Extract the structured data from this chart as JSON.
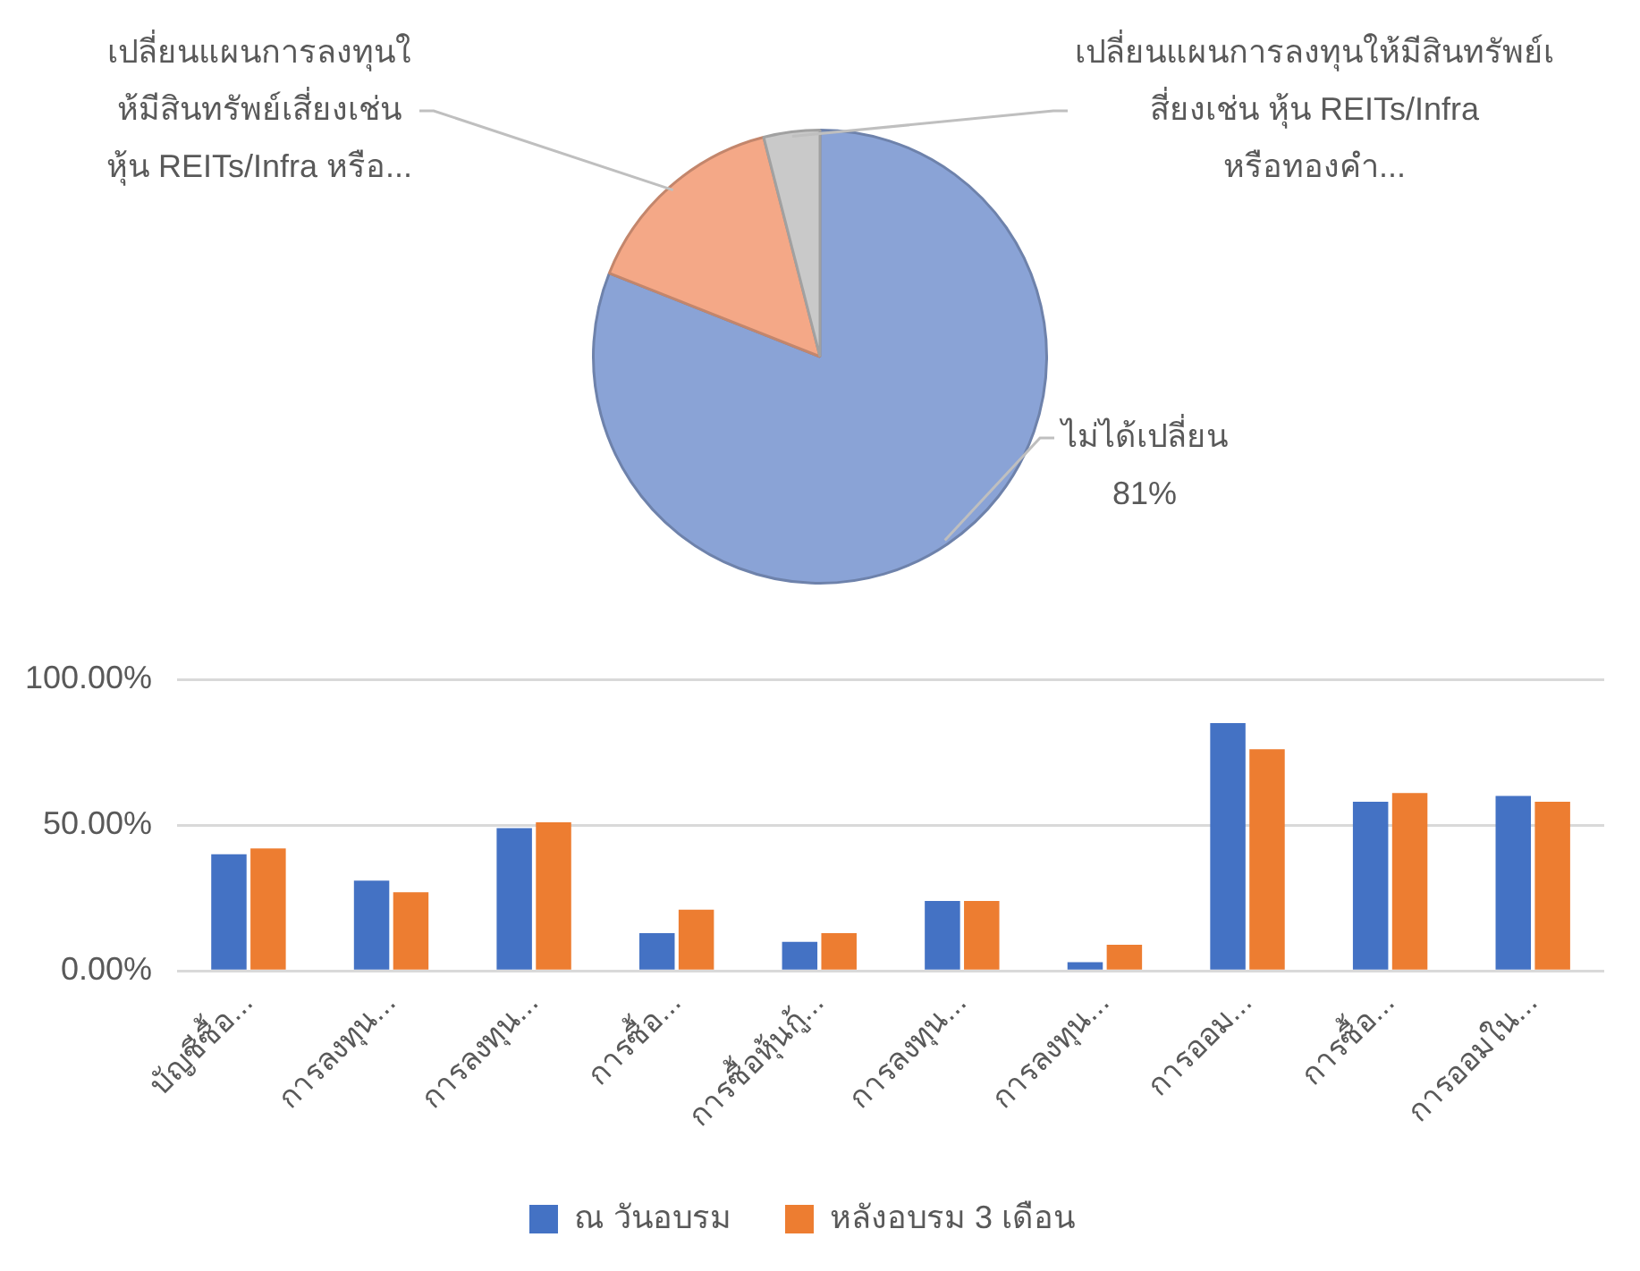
{
  "chart_data": [
    {
      "type": "pie",
      "categories": [
        "ไม่ได้เปลี่ยน",
        "เปลี่ยนแผนการลงทุนให้มีสินทรัพย์เสี่ยงเช่น หุ้น REITs/Infra หรือ...",
        "เปลี่ยนแผนการลงทุนให้มีสินทรัพย์เสี่ยงเช่น หุ้น REITs/Infra หรือทองคำ..."
      ],
      "values": [
        81,
        15,
        4
      ],
      "colors": [
        "#8aa3d6",
        "#f4a887",
        "#c9c9c9"
      ],
      "value_labels": [
        "81%",
        null,
        null
      ]
    },
    {
      "type": "bar",
      "categories": [
        "บัญชีซื้อ...",
        "การลงทุน...",
        "การลงทุน...",
        "การซื้อ...",
        "การซื้อหุ้นกู้...",
        "การลงทุน...",
        "การลงทุน...",
        "การออม...",
        "การซื้อ...",
        "การออมใน..."
      ],
      "series": [
        {
          "name": "ณ วันอบรม",
          "color": "#4472c4",
          "values": [
            40,
            31,
            49,
            13,
            10,
            24,
            3,
            85,
            58,
            60
          ]
        },
        {
          "name": "หลังอบรม 3 เดือน",
          "color": "#ed7d31",
          "values": [
            42,
            27,
            51,
            21,
            13,
            24,
            9,
            76,
            61,
            58
          ]
        }
      ],
      "ylim": [
        0,
        100
      ],
      "yticks": [
        {
          "value": 0,
          "label": "0.00%"
        },
        {
          "value": 50,
          "label": "50.00%"
        },
        {
          "value": 100,
          "label": "100.00%"
        }
      ],
      "grid": "y",
      "legend": "bottom"
    }
  ]
}
